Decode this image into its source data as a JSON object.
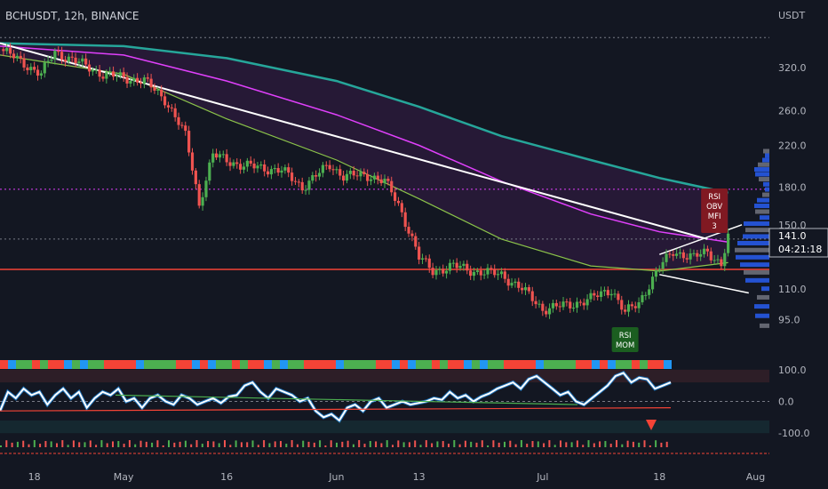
{
  "header": {
    "title": "BCHUSDT, 12h, BINANCE"
  },
  "colors": {
    "background": "#131722",
    "candle_up": "#4caf50",
    "candle_down": "#ef5350",
    "ema_fast": "#8bc34a",
    "ema_slow": "#e040fb",
    "ema_long": "#26a69a",
    "support_line": "#f44336",
    "trend_line": "#ffffff",
    "osc_line": "#ffffff",
    "osc_glow": "#2196f3"
  },
  "chart_data": {
    "type": "candlestick",
    "price_axis": {
      "unit_label": "USDT",
      "ticks": [
        320.0,
        260.0,
        220.0,
        180.0,
        150.0,
        110.0,
        95.0
      ],
      "tick_labels": [
        "320.0",
        "260.0",
        "220.0",
        "180.0",
        "150.0",
        "110.0",
        "95.0"
      ],
      "ylim": [
        90,
        380
      ],
      "scale": "log"
    },
    "time_axis": {
      "labels": [
        "18",
        "May",
        "16",
        "Jun",
        "13",
        "Jul",
        "18",
        "Aug"
      ],
      "range": [
        "2022-04-13",
        "2022-08-03"
      ]
    },
    "current_price": {
      "value": "141.0",
      "countdown": "04:21:18"
    },
    "support_level": 121,
    "resistance_level_1": 178,
    "resistance_level_2": 140,
    "key_points": [
      {
        "date": "2022-04-13",
        "price": 350
      },
      {
        "date": "2022-04-16",
        "price": 330
      },
      {
        "date": "2022-04-19",
        "price": 310
      },
      {
        "date": "2022-04-21",
        "price": 345
      },
      {
        "date": "2022-04-24",
        "price": 330
      },
      {
        "date": "2022-04-28",
        "price": 310
      },
      {
        "date": "2022-05-04",
        "price": 300
      },
      {
        "date": "2022-05-07",
        "price": 275
      },
      {
        "date": "2022-05-10",
        "price": 230
      },
      {
        "date": "2022-05-12",
        "price": 165
      },
      {
        "date": "2022-05-14",
        "price": 210
      },
      {
        "date": "2022-05-18",
        "price": 200
      },
      {
        "date": "2022-05-24",
        "price": 195
      },
      {
        "date": "2022-05-27",
        "price": 180
      },
      {
        "date": "2022-05-31",
        "price": 200
      },
      {
        "date": "2022-06-02",
        "price": 190
      },
      {
        "date": "2022-06-06",
        "price": 190
      },
      {
        "date": "2022-06-08",
        "price": 185
      },
      {
        "date": "2022-06-10",
        "price": 165
      },
      {
        "date": "2022-06-13",
        "price": 128
      },
      {
        "date": "2022-06-15",
        "price": 120
      },
      {
        "date": "2022-06-18",
        "price": 123
      },
      {
        "date": "2022-06-21",
        "price": 120
      },
      {
        "date": "2022-06-25",
        "price": 118
      },
      {
        "date": "2022-06-28",
        "price": 110
      },
      {
        "date": "2022-07-01",
        "price": 100
      },
      {
        "date": "2022-07-05",
        "price": 102
      },
      {
        "date": "2022-07-08",
        "price": 105
      },
      {
        "date": "2022-07-11",
        "price": 110
      },
      {
        "date": "2022-07-13",
        "price": 98
      },
      {
        "date": "2022-07-15",
        "price": 103
      },
      {
        "date": "2022-07-18",
        "price": 122
      },
      {
        "date": "2022-07-20",
        "price": 132
      },
      {
        "date": "2022-07-23",
        "price": 128
      },
      {
        "date": "2022-07-25",
        "price": 132
      },
      {
        "date": "2022-07-27",
        "price": 124
      },
      {
        "date": "2022-07-28",
        "price": 141
      }
    ],
    "ema_fast": [
      {
        "date": "2022-04-13",
        "price": 340
      },
      {
        "date": "2022-05-01",
        "price": 310
      },
      {
        "date": "2022-05-16",
        "price": 250
      },
      {
        "date": "2022-06-01",
        "price": 205
      },
      {
        "date": "2022-06-13",
        "price": 170
      },
      {
        "date": "2022-06-25",
        "price": 140
      },
      {
        "date": "2022-07-08",
        "price": 123
      },
      {
        "date": "2022-07-18",
        "price": 120
      },
      {
        "date": "2022-07-28",
        "price": 125
      }
    ],
    "ema_slow": [
      {
        "date": "2022-04-13",
        "price": 355
      },
      {
        "date": "2022-05-01",
        "price": 340
      },
      {
        "date": "2022-05-16",
        "price": 300
      },
      {
        "date": "2022-06-01",
        "price": 255
      },
      {
        "date": "2022-06-13",
        "price": 220
      },
      {
        "date": "2022-06-25",
        "price": 185
      },
      {
        "date": "2022-07-08",
        "price": 158
      },
      {
        "date": "2022-07-18",
        "price": 145
      },
      {
        "date": "2022-07-28",
        "price": 138
      }
    ],
    "ema_long": [
      {
        "date": "2022-04-13",
        "price": 360
      },
      {
        "date": "2022-05-01",
        "price": 355
      },
      {
        "date": "2022-05-16",
        "price": 335
      },
      {
        "date": "2022-06-01",
        "price": 300
      },
      {
        "date": "2022-06-13",
        "price": 265
      },
      {
        "date": "2022-06-25",
        "price": 230
      },
      {
        "date": "2022-07-08",
        "price": 205
      },
      {
        "date": "2022-07-18",
        "price": 188
      },
      {
        "date": "2022-07-28",
        "price": 175
      }
    ],
    "trend_line": [
      {
        "date": "2022-04-13",
        "price": 360
      },
      {
        "date": "2022-07-25",
        "price": 140
      }
    ],
    "channel": {
      "upper": [
        {
          "date": "2022-07-18",
          "price": 130
        },
        {
          "date": "2022-07-30",
          "price": 150
        }
      ],
      "lower": [
        {
          "date": "2022-07-18",
          "price": 118
        },
        {
          "date": "2022-07-31",
          "price": 108
        }
      ]
    },
    "annotations": [
      {
        "date": "2022-07-26",
        "label_lines": [
          "RSI",
          "OBV",
          "MFI",
          "3"
        ],
        "kind": "bearish"
      },
      {
        "date": "2022-07-13",
        "label_lines": [
          "RSI",
          "MOM"
        ],
        "kind": "bullish"
      }
    ],
    "oscillator": {
      "ticks": [
        100.0,
        0.0,
        -100.0
      ],
      "tick_labels": [
        "100.0",
        "0.0",
        "-100.0"
      ],
      "ylim": [
        -150,
        150
      ],
      "values": [
        -30,
        30,
        10,
        40,
        20,
        30,
        -10,
        20,
        40,
        10,
        30,
        -20,
        10,
        30,
        20,
        40,
        0,
        10,
        -20,
        10,
        20,
        0,
        -10,
        20,
        10,
        -10,
        0,
        10,
        -5,
        15,
        20,
        50,
        60,
        30,
        10,
        40,
        30,
        20,
        0,
        10,
        -30,
        -50,
        -40,
        -60,
        -20,
        -10,
        -30,
        0,
        10,
        -20,
        -10,
        0,
        -10,
        -5,
        0,
        10,
        5,
        30,
        10,
        20,
        0,
        15,
        25,
        40,
        50,
        60,
        40,
        70,
        80,
        60,
        40,
        20,
        30,
        0,
        -10,
        10,
        30,
        50,
        80,
        90,
        60,
        75,
        70,
        40,
        50,
        60
      ]
    }
  }
}
